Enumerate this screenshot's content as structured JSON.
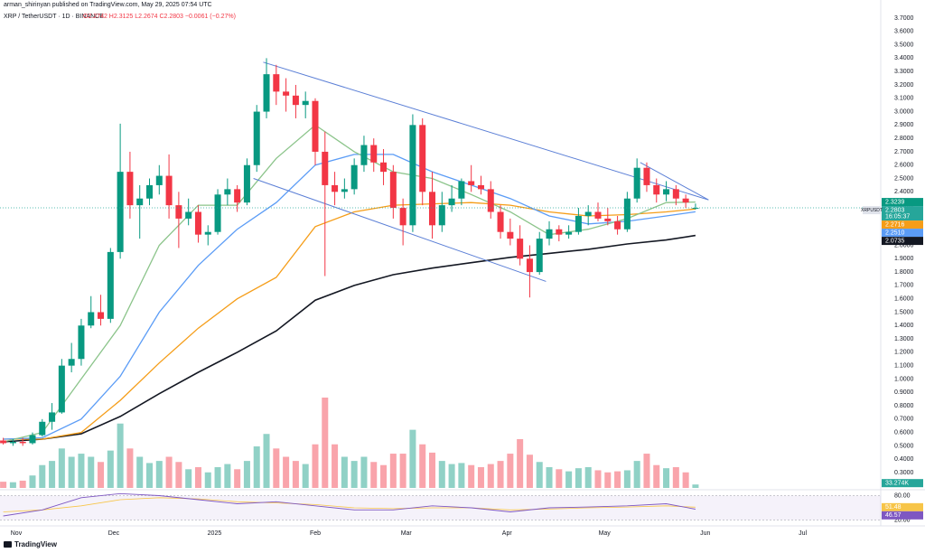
{
  "header": {
    "publisher": "arman_shirinyan published on TradingView.com, May 29, 2025 07:54 UTC",
    "symbol": "XRP / TetherUSDT · 1D · BINANCE",
    "ohlc_text": "O2.2742 H2.3125 L2.2674 C2.2803 −0.0061 (−0.27%)"
  },
  "chart_data": {
    "type": "candlestick",
    "up_color": "#089981",
    "down_color": "#f23645",
    "x": [
      0,
      3,
      6,
      9,
      12,
      15,
      18,
      21,
      24,
      27,
      30,
      33,
      36,
      39,
      42,
      45,
      48,
      51,
      54,
      57,
      60,
      63,
      66,
      69,
      72,
      75,
      78,
      81,
      84,
      87,
      90,
      93,
      96,
      99,
      102,
      105,
      108,
      111,
      114,
      117,
      120,
      123,
      126,
      129,
      132,
      135,
      138,
      141,
      144,
      147,
      150,
      153,
      156,
      159,
      162,
      165,
      168,
      171,
      174,
      177,
      180,
      183,
      186,
      189,
      192,
      195,
      198,
      201,
      204,
      207,
      210,
      213
    ],
    "ohlc": [
      [
        0.54,
        0.56,
        0.51,
        0.52
      ],
      [
        0.52,
        0.55,
        0.5,
        0.53
      ],
      [
        0.53,
        0.56,
        0.5,
        0.52
      ],
      [
        0.52,
        0.6,
        0.51,
        0.58
      ],
      [
        0.58,
        0.7,
        0.57,
        0.68
      ],
      [
        0.68,
        0.82,
        0.62,
        0.75
      ],
      [
        0.75,
        1.15,
        0.74,
        1.1
      ],
      [
        1.1,
        1.27,
        1.05,
        1.15
      ],
      [
        1.15,
        1.45,
        1.1,
        1.4
      ],
      [
        1.4,
        1.62,
        1.38,
        1.5
      ],
      [
        1.5,
        1.63,
        1.4,
        1.45
      ],
      [
        1.45,
        1.98,
        1.42,
        1.95
      ],
      [
        1.95,
        2.91,
        1.9,
        2.55
      ],
      [
        2.55,
        2.7,
        2.2,
        2.3
      ],
      [
        2.3,
        2.45,
        2.05,
        2.35
      ],
      [
        2.35,
        2.5,
        2.3,
        2.45
      ],
      [
        2.45,
        2.6,
        2.38,
        2.52
      ],
      [
        2.52,
        2.68,
        2.2,
        2.3
      ],
      [
        2.3,
        2.4,
        1.98,
        2.2
      ],
      [
        2.2,
        2.35,
        2.15,
        2.25
      ],
      [
        2.25,
        2.3,
        2.02,
        2.08
      ],
      [
        2.08,
        2.15,
        2.0,
        2.1
      ],
      [
        2.1,
        2.42,
        2.08,
        2.38
      ],
      [
        2.38,
        2.5,
        2.3,
        2.42
      ],
      [
        2.42,
        2.45,
        2.25,
        2.32
      ],
      [
        2.32,
        2.65,
        2.3,
        2.6
      ],
      [
        2.6,
        3.05,
        2.55,
        3.0
      ],
      [
        3.0,
        3.4,
        2.95,
        3.28
      ],
      [
        3.28,
        3.35,
        3.05,
        3.15
      ],
      [
        3.15,
        3.25,
        3.0,
        3.12
      ],
      [
        3.12,
        3.2,
        2.95,
        3.05
      ],
      [
        3.05,
        3.15,
        2.95,
        3.08
      ],
      [
        3.08,
        3.1,
        2.6,
        2.7
      ],
      [
        2.7,
        2.85,
        1.77,
        2.45
      ],
      [
        2.45,
        2.55,
        2.3,
        2.4
      ],
      [
        2.4,
        2.5,
        2.35,
        2.42
      ],
      [
        2.42,
        2.65,
        2.38,
        2.6
      ],
      [
        2.6,
        2.82,
        2.55,
        2.75
      ],
      [
        2.75,
        2.8,
        2.55,
        2.62
      ],
      [
        2.62,
        2.72,
        2.45,
        2.55
      ],
      [
        2.55,
        2.6,
        2.2,
        2.28
      ],
      [
        2.28,
        2.35,
        2.0,
        2.15
      ],
      [
        2.15,
        2.98,
        2.1,
        2.9
      ],
      [
        2.9,
        2.95,
        2.3,
        2.4
      ],
      [
        2.4,
        2.55,
        2.05,
        2.15
      ],
      [
        2.15,
        2.4,
        2.1,
        2.3
      ],
      [
        2.3,
        2.45,
        2.25,
        2.35
      ],
      [
        2.35,
        2.5,
        2.3,
        2.48
      ],
      [
        2.48,
        2.6,
        2.4,
        2.45
      ],
      [
        2.45,
        2.52,
        2.38,
        2.42
      ],
      [
        2.42,
        2.48,
        2.2,
        2.25
      ],
      [
        2.25,
        2.3,
        2.05,
        2.1
      ],
      [
        2.1,
        2.2,
        2.0,
        2.05
      ],
      [
        2.05,
        2.15,
        1.85,
        1.9
      ],
      [
        1.9,
        2.0,
        1.61,
        1.8
      ],
      [
        1.8,
        2.1,
        1.78,
        2.05
      ],
      [
        2.05,
        2.18,
        2.0,
        2.12
      ],
      [
        2.12,
        2.15,
        2.03,
        2.08
      ],
      [
        2.08,
        2.15,
        2.05,
        2.1
      ],
      [
        2.1,
        2.28,
        2.08,
        2.22
      ],
      [
        2.22,
        2.3,
        2.15,
        2.25
      ],
      [
        2.25,
        2.32,
        2.18,
        2.2
      ],
      [
        2.2,
        2.28,
        2.15,
        2.18
      ],
      [
        2.18,
        2.22,
        2.08,
        2.12
      ],
      [
        2.12,
        2.4,
        2.1,
        2.35
      ],
      [
        2.35,
        2.65,
        2.32,
        2.58
      ],
      [
        2.58,
        2.62,
        2.4,
        2.45
      ],
      [
        2.45,
        2.5,
        2.32,
        2.38
      ],
      [
        2.38,
        2.48,
        2.33,
        2.42
      ],
      [
        2.42,
        2.45,
        2.3,
        2.35
      ],
      [
        2.35,
        2.38,
        2.28,
        2.32
      ],
      [
        2.2742,
        2.3125,
        2.2674,
        2.2803
      ]
    ],
    "volume": {
      "values": [
        60,
        55,
        70,
        120,
        220,
        260,
        380,
        300,
        330,
        300,
        250,
        360,
        620,
        380,
        300,
        240,
        260,
        300,
        250,
        180,
        200,
        150,
        200,
        230,
        180,
        260,
        400,
        520,
        380,
        300,
        260,
        230,
        420,
        870,
        420,
        300,
        260,
        300,
        250,
        220,
        330,
        330,
        560,
        420,
        340,
        260,
        230,
        240,
        220,
        200,
        230,
        260,
        330,
        470,
        320,
        250,
        200,
        180,
        160,
        190,
        200,
        170,
        150,
        160,
        170,
        260,
        330,
        220,
        190,
        200,
        150,
        33.274
      ],
      "value_label": "33.274K",
      "color": "#26a69a"
    },
    "series": [
      {
        "color": "#131722",
        "x": [
          0,
          12,
          24,
          36,
          48,
          60,
          72,
          84,
          96,
          108,
          120,
          132,
          144,
          156,
          168,
          180,
          192,
          204,
          213
        ],
        "values": [
          0.53,
          0.55,
          0.59,
          0.72,
          0.89,
          1.05,
          1.2,
          1.36,
          1.59,
          1.7,
          1.78,
          1.83,
          1.87,
          1.91,
          1.94,
          1.97,
          2.01,
          2.04,
          2.0735
        ]
      },
      {
        "color": "#f59d18",
        "x": [
          0,
          12,
          24,
          36,
          48,
          60,
          72,
          84,
          96,
          108,
          120,
          132,
          144,
          156,
          168,
          180,
          192,
          204,
          213
        ],
        "values": [
          0.55,
          0.55,
          0.6,
          0.84,
          1.12,
          1.38,
          1.6,
          1.76,
          2.14,
          2.25,
          2.3,
          2.31,
          2.32,
          2.3,
          2.25,
          2.22,
          2.23,
          2.25,
          2.2716
        ]
      },
      {
        "color": "#5b9cf6",
        "x": [
          0,
          12,
          24,
          36,
          48,
          60,
          72,
          84,
          96,
          108,
          120,
          132,
          144,
          156,
          168,
          180,
          192,
          204,
          213
        ],
        "values": [
          0.55,
          0.56,
          0.7,
          1.02,
          1.5,
          1.85,
          2.12,
          2.32,
          2.6,
          2.68,
          2.68,
          2.55,
          2.45,
          2.35,
          2.22,
          2.16,
          2.18,
          2.22,
          2.251
        ]
      },
      {
        "color": "#8bc48a",
        "x": [
          0,
          12,
          24,
          36,
          48,
          60,
          72,
          84,
          96,
          108,
          120,
          132,
          144,
          156,
          168,
          180,
          192,
          204,
          213
        ],
        "values": [
          0.53,
          0.6,
          1.0,
          1.4,
          2.0,
          2.3,
          2.3,
          2.65,
          2.9,
          2.7,
          2.55,
          2.5,
          2.38,
          2.25,
          2.08,
          2.12,
          2.2,
          2.32,
          2.3239
        ]
      }
    ],
    "trendline_color": "#5b7fd6",
    "trendlines": [
      {
        "x": [
          80,
          217
        ],
        "values": [
          3.37,
          2.34
        ]
      },
      {
        "x": [
          77,
          167
        ],
        "values": [
          2.5,
          1.73
        ]
      },
      {
        "x": [
          196,
          217
        ],
        "values": [
          2.62,
          2.34
        ]
      }
    ],
    "xlim": [
      -1,
      270
    ],
    "xticks": [
      {
        "value": 4,
        "label": "Nov"
      },
      {
        "value": 34,
        "label": "Dec"
      },
      {
        "value": 65,
        "label": "2025"
      },
      {
        "value": 96,
        "label": "Feb"
      },
      {
        "value": 124,
        "label": "Mar"
      },
      {
        "value": 155,
        "label": "Apr"
      },
      {
        "value": 185,
        "label": "May"
      },
      {
        "value": 216,
        "label": "Jun"
      },
      {
        "value": 246,
        "label": "Jul"
      }
    ],
    "ylim": [
      0.3,
      3.7
    ],
    "yticks": [
      {
        "value": 0.3,
        "label": "0.3000"
      },
      {
        "value": 0.4,
        "label": "0.4000"
      },
      {
        "value": 0.5,
        "label": "0.5000"
      },
      {
        "value": 0.6,
        "label": "0.6000"
      },
      {
        "value": 0.7,
        "label": "0.7000"
      },
      {
        "value": 0.8,
        "label": "0.8000"
      },
      {
        "value": 0.9,
        "label": "0.9000"
      },
      {
        "value": 1,
        "label": "1.0000"
      },
      {
        "value": 1.1,
        "label": "1.1000"
      },
      {
        "value": 1.2,
        "label": "1.2000"
      },
      {
        "value": 1.3,
        "label": "1.3000"
      },
      {
        "value": 1.4,
        "label": "1.4000"
      },
      {
        "value": 1.5,
        "label": "1.5000"
      },
      {
        "value": 1.6,
        "label": "1.6000"
      },
      {
        "value": 1.7,
        "label": "1.7000"
      },
      {
        "value": 1.8,
        "label": "1.8000"
      },
      {
        "value": 1.9,
        "label": "1.9000"
      },
      {
        "value": 2,
        "label": "2.0000"
      },
      {
        "value": 2.1,
        "label": "2.1000"
      },
      {
        "value": 2.2,
        "label": "2.2000"
      },
      {
        "value": 2.3,
        "label": "2.3000"
      },
      {
        "value": 2.4,
        "label": "2.4000"
      },
      {
        "value": 2.5,
        "label": "2.5000"
      },
      {
        "value": 2.6,
        "label": "2.6000"
      },
      {
        "value": 2.7,
        "label": "2.7000"
      },
      {
        "value": 2.8,
        "label": "2.8000"
      },
      {
        "value": 2.9,
        "label": "2.9000"
      },
      {
        "value": 3,
        "label": "3.0000"
      },
      {
        "value": 3.1,
        "label": "3.1000"
      },
      {
        "value": 3.2,
        "label": "3.2000"
      },
      {
        "value": 3.3,
        "label": "3.3000"
      },
      {
        "value": 3.4,
        "label": "3.4000"
      },
      {
        "value": 3.5,
        "label": "3.5000"
      },
      {
        "value": 3.6,
        "label": "3.6000"
      },
      {
        "value": 3.7,
        "label": "3.7000"
      }
    ],
    "price_tags": [
      {
        "value": 2.3239,
        "label": "2.3239",
        "color": "#089981"
      },
      {
        "value": 2.2803,
        "label": "2.2803",
        "color": "#26a69a",
        "symbol": "XRPUSDT",
        "countdown": "16:05:37"
      },
      {
        "value": 2.2716,
        "label": "2.2716",
        "color": "#f59d18"
      },
      {
        "value": 2.251,
        "label": "2.2510",
        "color": "#5b9cf6"
      },
      {
        "value": 2.0735,
        "label": "2.0735",
        "color": "#131722"
      }
    ],
    "rsi": {
      "ylim": [
        10,
        90
      ],
      "yticks": [
        {
          "value": 80,
          "label": "80.00"
        },
        {
          "value": 20,
          "label": "20.00"
        }
      ],
      "line": {
        "color": "#7e57c2",
        "x": [
          0,
          12,
          24,
          36,
          48,
          60,
          72,
          84,
          96,
          108,
          120,
          132,
          144,
          156,
          168,
          180,
          192,
          204,
          213
        ],
        "values": [
          30,
          45,
          75,
          85,
          80,
          70,
          60,
          65,
          55,
          45,
          45,
          55,
          50,
          40,
          50,
          52,
          55,
          60,
          46.57
        ]
      },
      "ma": {
        "color": "#f7c548",
        "x": [
          0,
          12,
          24,
          36,
          48,
          60,
          72,
          84,
          96,
          108,
          120,
          132,
          144,
          156,
          168,
          180,
          192,
          204,
          213
        ],
        "values": [
          40,
          45,
          55,
          70,
          75,
          72,
          65,
          62,
          58,
          50,
          48,
          50,
          50,
          45,
          47,
          50,
          52,
          55,
          51.48
        ]
      },
      "tags": [
        {
          "value": 51.48,
          "label": "51.48",
          "color": "#f7c548"
        },
        {
          "value": 46.57,
          "label": "46.57",
          "color": "#7e57c2"
        }
      ]
    }
  },
  "footer": {
    "logo": "TradingView"
  }
}
